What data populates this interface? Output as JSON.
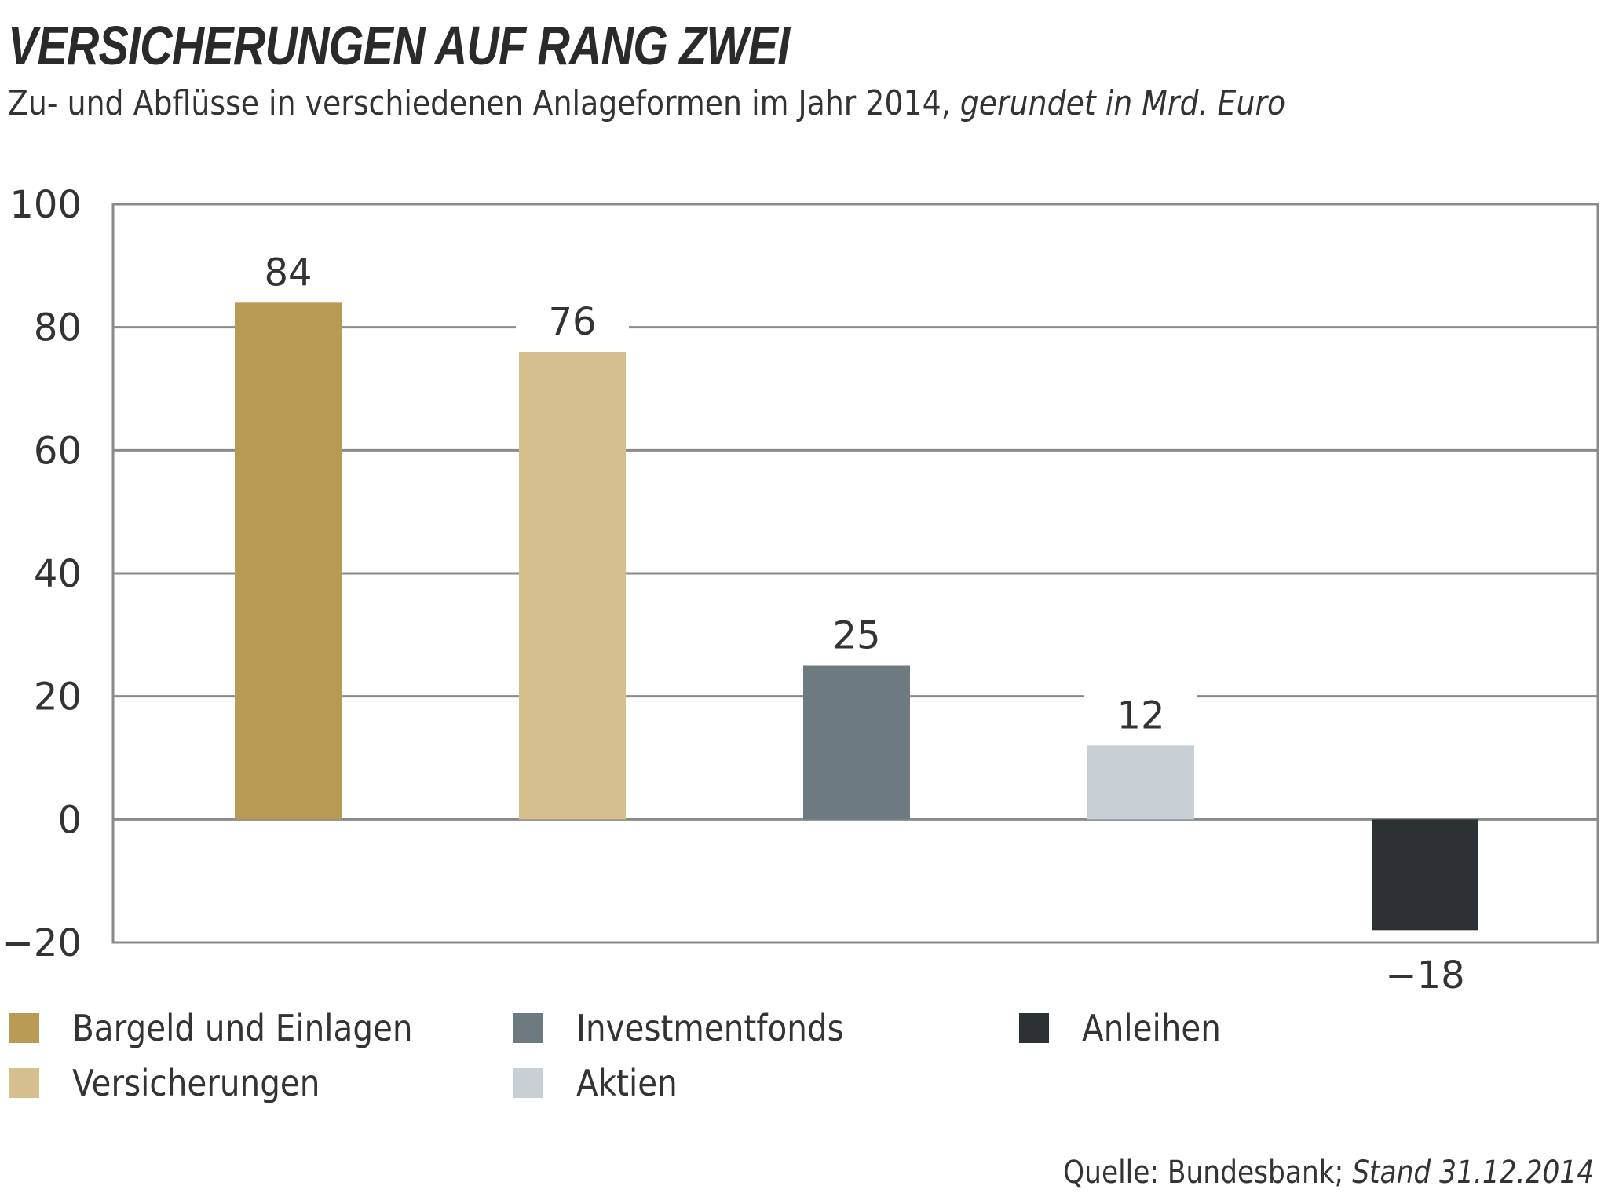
{
  "header": {
    "title": "VERSICHERUNGEN AUF RANG ZWEI",
    "subtitle_main": "Zu- und Abflüsse in verschiedenen Anlageformen im Jahr 2014,",
    "subtitle_italic": "gerundet in Mrd. Euro"
  },
  "footer": {
    "source_main": "Quelle: Bundesbank;",
    "source_italic": "Stand 31.12.2014"
  },
  "chart_data": {
    "type": "bar",
    "title": "VERSICHERUNGEN AUF RANG ZWEI",
    "subtitle": "Zu- und Abflüsse in verschiedenen Anlageformen im Jahr 2014, gerundet in Mrd. Euro",
    "xlabel": "",
    "ylabel": "",
    "ylim": [
      -20,
      100
    ],
    "yticks": [
      100,
      80,
      60,
      40,
      20,
      0,
      -20
    ],
    "ytick_labels": [
      "100",
      "80",
      "60",
      "40",
      "20",
      "0",
      "−20"
    ],
    "grid": true,
    "legend_position": "bottom",
    "categories": [
      "Bargeld und Einlagen",
      "Versicherungen",
      "Investmentfonds",
      "Aktien",
      "Anleihen"
    ],
    "values": [
      84,
      76,
      25,
      12,
      -18
    ],
    "data_labels": [
      "84",
      "76",
      "25",
      "12",
      "−18"
    ],
    "colors": [
      "#b99a55",
      "#d5bf8f",
      "#6d7a80",
      "#c8d0d5",
      "#2c3133"
    ],
    "legend": [
      {
        "label": "Bargeld und Einlagen",
        "color": "#b99a55"
      },
      {
        "label": "Investmentfonds",
        "color": "#6d7a80"
      },
      {
        "label": "Anleihen",
        "color": "#2c3133"
      },
      {
        "label": "Versicherungen",
        "color": "#d5bf8f"
      },
      {
        "label": "Aktien",
        "color": "#c8d0d5"
      }
    ],
    "source": "Quelle: Bundesbank; Stand 31.12.2014"
  }
}
